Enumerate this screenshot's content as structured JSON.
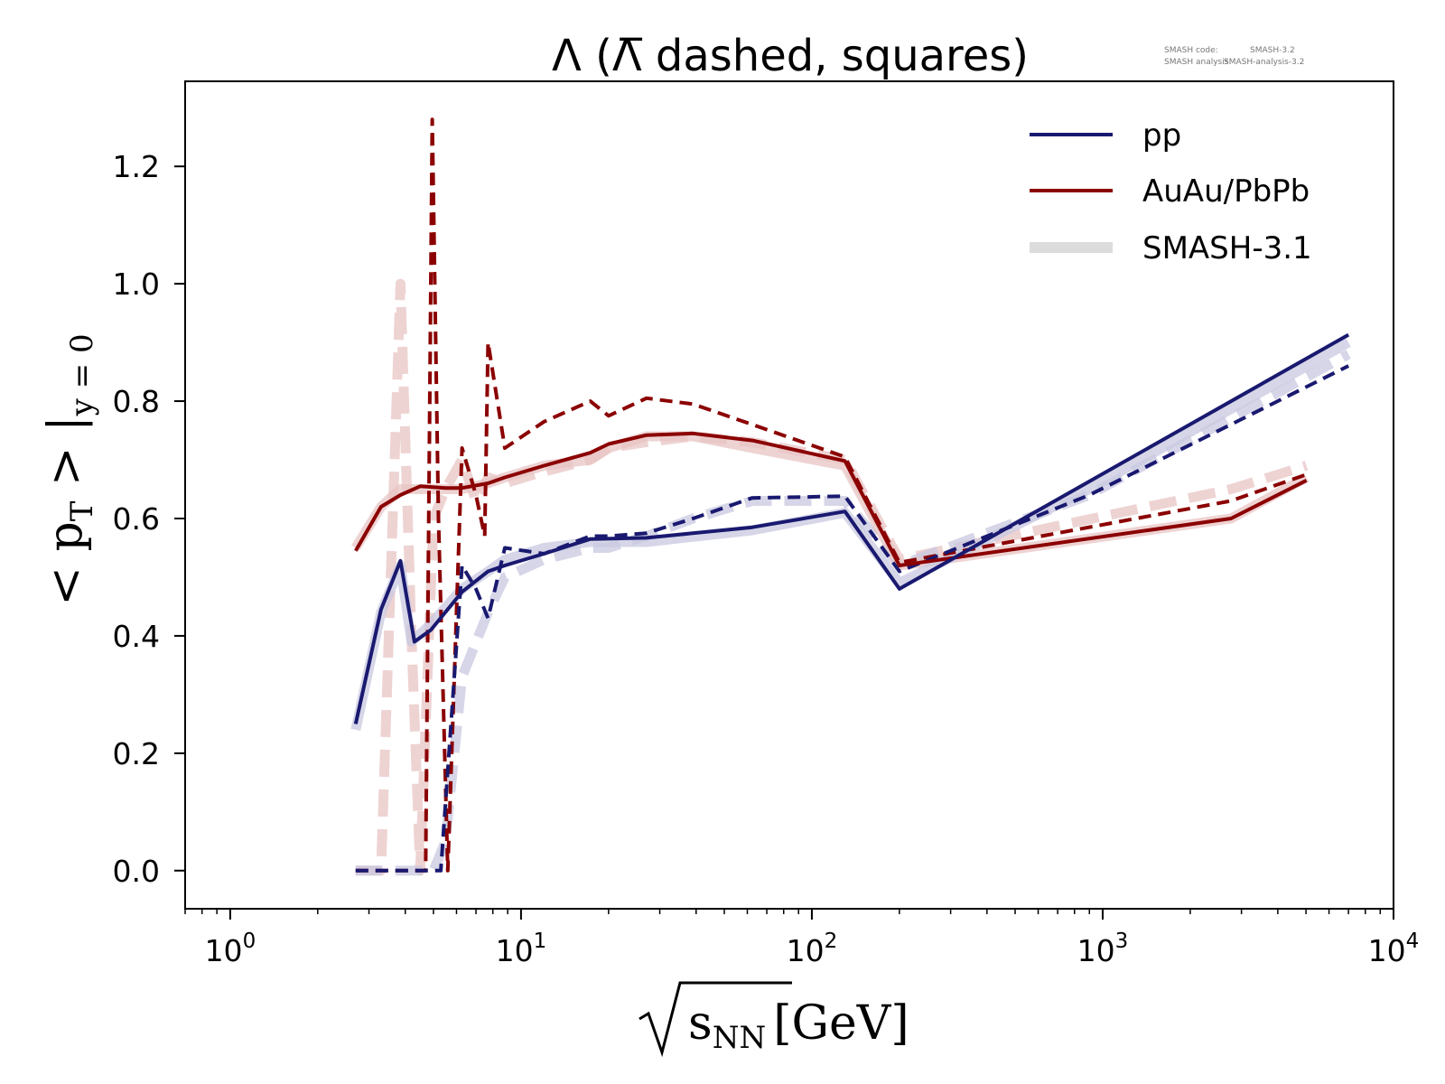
{
  "chart_data": {
    "type": "line",
    "title": "Λ (Λ̅ dashed, squares)",
    "xlabel": "[GeV]",
    "xlabel_symbol": "s",
    "xlabel_sub": "NN",
    "ylabel_prefix": "< p",
    "ylabel_sub_T": "T",
    "ylabel_mid": " > |",
    "ylabel_sub_y": "y = 0",
    "xscale": "log",
    "xlim": [
      0.7,
      10000
    ],
    "ylim": [
      -0.065,
      1.345
    ],
    "xticks": [
      {
        "value": 1,
        "base": "10",
        "exp": "0"
      },
      {
        "value": 10,
        "base": "10",
        "exp": "1"
      },
      {
        "value": 100,
        "base": "10",
        "exp": "2"
      },
      {
        "value": 1000,
        "base": "10",
        "exp": "3"
      },
      {
        "value": 10000,
        "base": "10",
        "exp": "4"
      }
    ],
    "yticks": [
      0.0,
      0.2,
      0.4,
      0.6,
      0.8,
      1.0,
      1.2
    ],
    "ytick_labels": [
      "0.0",
      "0.2",
      "0.4",
      "0.6",
      "0.8",
      "1.0",
      "1.2"
    ],
    "legend": {
      "placement": "top-right",
      "entries": [
        {
          "label": "pp",
          "color": "#191970"
        },
        {
          "label": "AuAu/PbPb",
          "color": "#8b0000"
        },
        {
          "label": "SMASH-3.1",
          "color": "#dcdcdc"
        }
      ]
    },
    "version_text": {
      "line1_key": "SMASH code:",
      "line1_value": "SMASH-3.2",
      "line2_key": "SMASH analysis:",
      "line2_value": "SMASH-analysis-3.2"
    },
    "colors": {
      "pp": "#191970",
      "aa": "#8b0000",
      "pp_ref": "#c8c8e0",
      "aa_ref": "#e8c4c4"
    },
    "series": [
      {
        "role": "aa_ref_dashed",
        "style": "dashed",
        "group": "aa_ref",
        "points": [
          [
            2.7,
            0.0
          ],
          [
            3.3,
            0.0
          ],
          [
            3.85,
            1.0
          ],
          [
            4.2,
            0.4
          ],
          [
            4.5,
            0.0
          ],
          [
            5.0,
            0.6
          ],
          [
            5.5,
            0.65
          ],
          [
            6.27,
            0.7
          ],
          [
            7.0,
            0.63
          ],
          [
            7.7,
            0.67
          ],
          [
            8.8,
            0.66
          ],
          [
            12,
            0.68
          ],
          [
            17.3,
            0.7
          ],
          [
            20,
            0.72
          ],
          [
            27,
            0.73
          ],
          [
            39,
            0.74
          ],
          [
            62.4,
            0.73
          ],
          [
            130,
            0.7
          ],
          [
            200,
            0.53
          ],
          [
            2760,
            0.65
          ],
          [
            5020,
            0.69
          ]
        ]
      },
      {
        "role": "pp_ref_dashed",
        "style": "dashed",
        "group": "pp_ref",
        "points": [
          [
            2.7,
            0.0
          ],
          [
            3.3,
            0.0
          ],
          [
            4.5,
            0.0
          ],
          [
            5.0,
            0.0
          ],
          [
            5.5,
            0.05
          ],
          [
            6.27,
            0.33
          ],
          [
            7.7,
            0.44
          ],
          [
            8.8,
            0.5
          ],
          [
            12,
            0.53
          ],
          [
            17.3,
            0.55
          ],
          [
            20,
            0.55
          ],
          [
            27,
            0.57
          ],
          [
            39,
            0.6
          ],
          [
            62.4,
            0.63
          ],
          [
            130,
            0.63
          ],
          [
            200,
            0.52
          ],
          [
            900,
            0.64
          ],
          [
            7000,
            0.88
          ]
        ]
      },
      {
        "role": "aa_ref_solid",
        "style": "solid",
        "group": "aa_ref",
        "points": [
          [
            2.7,
            0.55
          ],
          [
            3.3,
            0.62
          ],
          [
            3.85,
            0.65
          ],
          [
            4.5,
            0.65
          ],
          [
            5.5,
            0.65
          ],
          [
            6.27,
            0.65
          ],
          [
            7.7,
            0.66
          ],
          [
            8.8,
            0.67
          ],
          [
            12,
            0.69
          ],
          [
            17.3,
            0.7
          ],
          [
            20,
            0.72
          ],
          [
            27,
            0.74
          ],
          [
            39,
            0.74
          ],
          [
            62.4,
            0.72
          ],
          [
            130,
            0.69
          ],
          [
            200,
            0.52
          ],
          [
            2760,
            0.6
          ],
          [
            5020,
            0.67
          ]
        ]
      },
      {
        "role": "pp_ref_solid",
        "style": "solid",
        "group": "pp_ref",
        "points": [
          [
            2.7,
            0.24
          ],
          [
            3.3,
            0.44
          ],
          [
            3.85,
            0.52
          ],
          [
            4.2,
            0.39
          ],
          [
            4.9,
            0.42
          ],
          [
            6.27,
            0.48
          ],
          [
            7.7,
            0.51
          ],
          [
            8.8,
            0.53
          ],
          [
            12,
            0.55
          ],
          [
            17.3,
            0.56
          ],
          [
            27,
            0.56
          ],
          [
            62.4,
            0.58
          ],
          [
            130,
            0.61
          ],
          [
            200,
            0.49
          ],
          [
            900,
            0.65
          ],
          [
            7000,
            0.9
          ]
        ]
      },
      {
        "role": "aa_dashed",
        "style": "dashed",
        "group": "aa",
        "points": [
          [
            2.7,
            0.0
          ],
          [
            3.3,
            0.0
          ],
          [
            4.3,
            0.0
          ],
          [
            4.7,
            0.0
          ],
          [
            4.95,
            1.28
          ],
          [
            5.2,
            0.6
          ],
          [
            5.6,
            0.0
          ],
          [
            6.27,
            0.72
          ],
          [
            7.0,
            0.64
          ],
          [
            7.5,
            0.57
          ],
          [
            7.7,
            0.9
          ],
          [
            8.8,
            0.72
          ],
          [
            12,
            0.765
          ],
          [
            17.3,
            0.8
          ],
          [
            20,
            0.775
          ],
          [
            27,
            0.805
          ],
          [
            39,
            0.795
          ],
          [
            62.4,
            0.76
          ],
          [
            130,
            0.705
          ],
          [
            200,
            0.525
          ],
          [
            2760,
            0.63
          ],
          [
            5020,
            0.675
          ]
        ]
      },
      {
        "role": "pp_dashed",
        "style": "dashed",
        "group": "pp",
        "points": [
          [
            2.7,
            0.0
          ],
          [
            3.3,
            0.0
          ],
          [
            4.5,
            0.0
          ],
          [
            5.0,
            0.0
          ],
          [
            5.3,
            0.0
          ],
          [
            6.27,
            0.52
          ],
          [
            7.0,
            0.48
          ],
          [
            7.7,
            0.43
          ],
          [
            8.8,
            0.55
          ],
          [
            12,
            0.54
          ],
          [
            17.3,
            0.57
          ],
          [
            20,
            0.57
          ],
          [
            27,
            0.575
          ],
          [
            39,
            0.6
          ],
          [
            62.4,
            0.635
          ],
          [
            130,
            0.638
          ],
          [
            200,
            0.51
          ],
          [
            900,
            0.64
          ],
          [
            7000,
            0.86
          ]
        ]
      },
      {
        "role": "aa_solid",
        "style": "solid",
        "group": "aa",
        "points": [
          [
            2.7,
            0.545
          ],
          [
            3.3,
            0.62
          ],
          [
            3.85,
            0.64
          ],
          [
            4.5,
            0.655
          ],
          [
            5.5,
            0.652
          ],
          [
            6.27,
            0.652
          ],
          [
            7.7,
            0.66
          ],
          [
            8.8,
            0.67
          ],
          [
            12,
            0.69
          ],
          [
            17.3,
            0.712
          ],
          [
            20,
            0.727
          ],
          [
            27,
            0.742
          ],
          [
            39,
            0.745
          ],
          [
            62.4,
            0.733
          ],
          [
            130,
            0.698
          ],
          [
            200,
            0.52
          ],
          [
            2760,
            0.6
          ],
          [
            5020,
            0.665
          ]
        ]
      },
      {
        "role": "pp_solid",
        "style": "solid",
        "group": "pp",
        "points": [
          [
            2.7,
            0.25
          ],
          [
            3.3,
            0.445
          ],
          [
            3.85,
            0.528
          ],
          [
            4.3,
            0.39
          ],
          [
            4.9,
            0.41
          ],
          [
            6.27,
            0.475
          ],
          [
            7.7,
            0.51
          ],
          [
            8.8,
            0.52
          ],
          [
            12,
            0.54
          ],
          [
            17.3,
            0.565
          ],
          [
            27,
            0.567
          ],
          [
            62.4,
            0.585
          ],
          [
            130,
            0.612
          ],
          [
            200,
            0.48
          ],
          [
            7000,
            0.913
          ]
        ]
      }
    ]
  }
}
